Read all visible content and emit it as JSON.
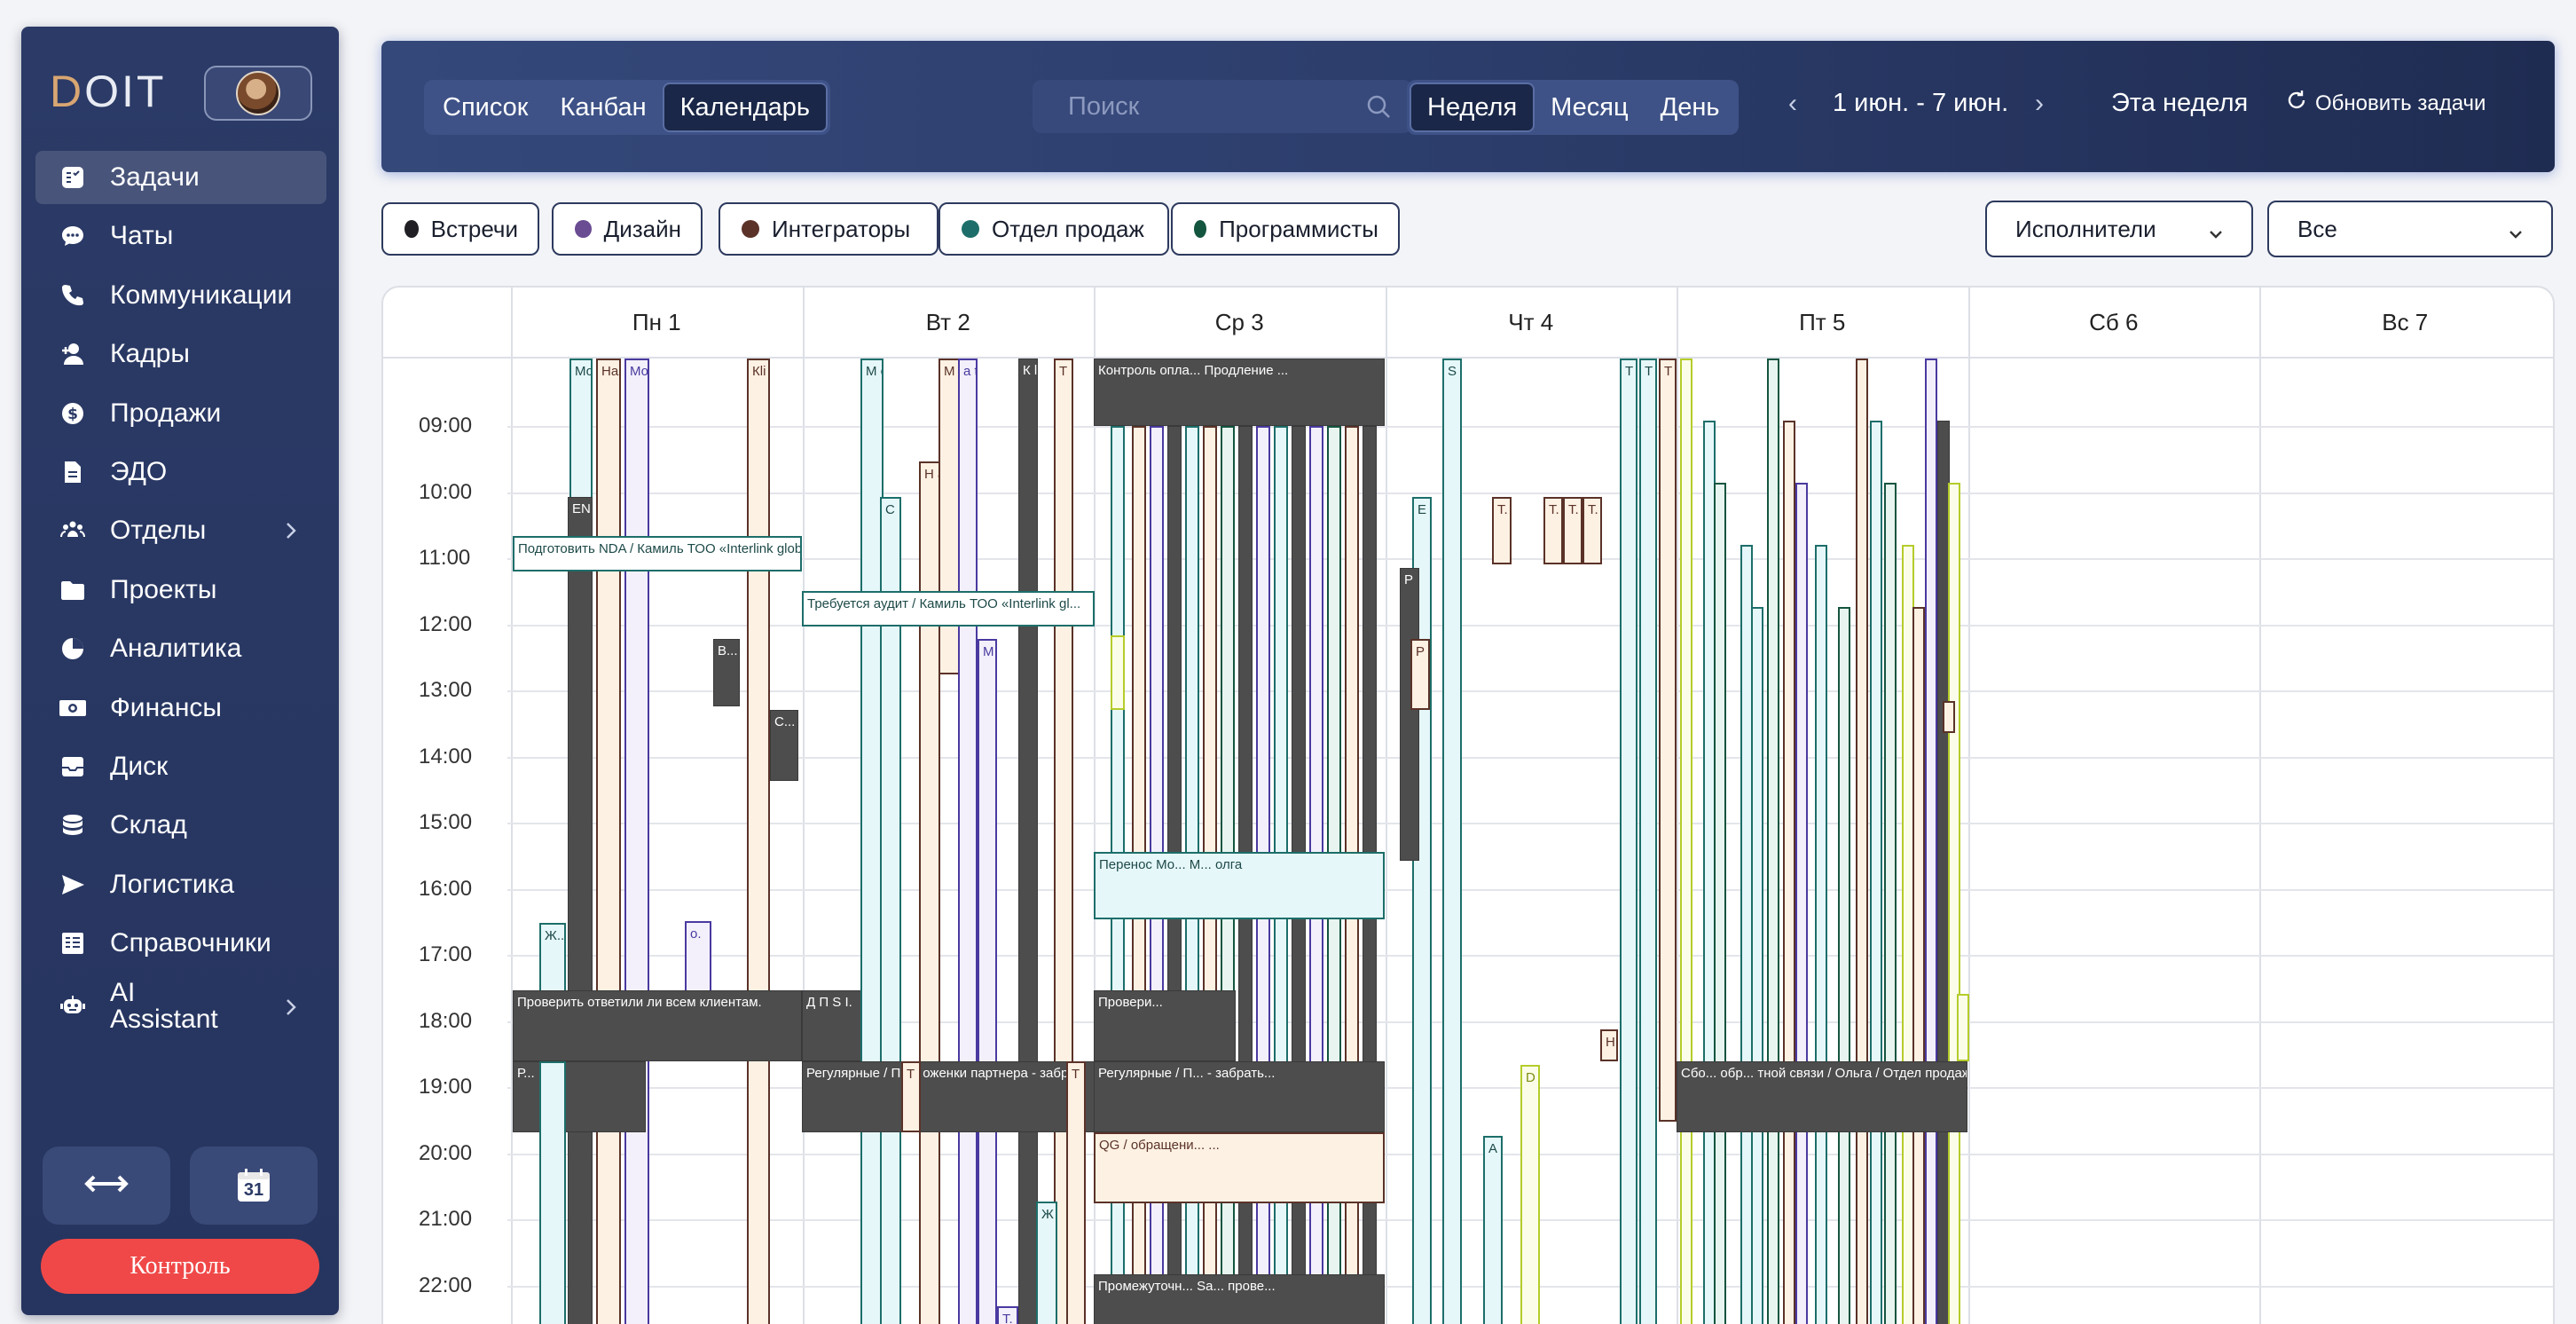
{
  "sidebar": {
    "logo": {
      "first": "D",
      "rest": "OIT"
    },
    "items": [
      {
        "label": "Задачи",
        "icon": "tasks-icon",
        "active": true
      },
      {
        "label": "Чаты",
        "icon": "chat-icon"
      },
      {
        "label": "Коммуникации",
        "icon": "phone-icon"
      },
      {
        "label": "Кадры",
        "icon": "add-user-icon"
      },
      {
        "label": "Продажи",
        "icon": "dollar-icon"
      },
      {
        "label": "ЭДО",
        "icon": "document-icon"
      },
      {
        "label": "Отделы",
        "icon": "departments-icon",
        "chevron": true
      },
      {
        "label": "Проекты",
        "icon": "folder-icon"
      },
      {
        "label": "Аналитика",
        "icon": "pie-chart-icon"
      },
      {
        "label": "Финансы",
        "icon": "finance-icon"
      },
      {
        "label": "Диск",
        "icon": "inbox-icon"
      },
      {
        "label": "Склад",
        "icon": "database-icon"
      },
      {
        "label": "Логистика",
        "icon": "send-icon"
      },
      {
        "label": "Справочники",
        "icon": "directory-icon"
      },
      {
        "label": "AI Assistant",
        "icon": "robot-icon",
        "chevron": true
      }
    ],
    "calendar_day": "31",
    "control_label": "Контроль"
  },
  "topbar": {
    "view_tabs": [
      "Список",
      "Канбан",
      "Календарь"
    ],
    "selected_view": "Календарь",
    "search_placeholder": "Поиск",
    "range_tabs": [
      "Неделя",
      "Месяц",
      "День"
    ],
    "selected_range": "Неделя",
    "prev": "‹",
    "range_text": "1 июн. - 7 июн.",
    "next": "›",
    "this_week": "Эта неделя",
    "refresh": "Обновить задачи"
  },
  "filters": {
    "chips": [
      {
        "label": "Встречи",
        "color": "#1f1f24"
      },
      {
        "label": "Дизайн",
        "color": "#6a4c93"
      },
      {
        "label": "Интеграторы",
        "color": "#5b3228"
      },
      {
        "label": "Отдел продаж",
        "color": "#1d6e6a"
      },
      {
        "label": "Программисты",
        "color": "#14553f"
      }
    ],
    "performers_label": "Исполнители",
    "all_label": "Все"
  },
  "calendar": {
    "days": [
      "Пн 1",
      "Вт 2",
      "Ср 3",
      "Чт 4",
      "Пт 5",
      "Сб 6",
      "Вс 7"
    ],
    "hours": [
      "09:00",
      "10:00",
      "11:00",
      "12:00",
      "13:00",
      "14:00",
      "15:00",
      "16:00",
      "17:00",
      "18:00",
      "19:00",
      "20:00",
      "21:00",
      "22:00"
    ],
    "colors": {
      "dark": "#4d4d4d",
      "teal_fill": "#e6f7fa",
      "teal_border": "#1d6e6a",
      "peach_fill": "#fdf1e3",
      "brown_border": "#5b3228",
      "purple_border": "#4a3aa0",
      "lime_border": "#b5cc2a",
      "green_border": "#14553f"
    },
    "events": {
      "nda": "Подготовить NDA / Камиль ТОО «Interlink glob...",
      "audit": "Требуется аудит / Камиль ТОО «Interlink gl...",
      "check_clients": "Проверить ответили ли всем клиентам.",
      "regular": "Регулярные / Пр... оженки партнера - забр...",
      "control_pay": "Контроль опла... Продление ...",
      "transfer": "Перенос Мо... М... олга",
      "check": "Провери...",
      "regular_wed": "Регулярные / П... - забрать...",
      "qg": "QG / обращени... ...",
      "interim": "Промежуточн... Sa... прове...",
      "feedback": "Сбо... обр... тной связи / Ольга / Отдел продаж",
      "en": "EN IT...",
      "p_dots": "Р...",
      "small_letters": [
        "Мо д...",
        "На с...",
        "Мо н...",
        "Кli m...",
        "В...",
        "С...",
        "Ж...",
        "о.",
        "Д",
        "П",
        "S I.",
        "С h.",
        "Н а.",
        "М о.",
        "а t.",
        "К l.",
        "Т",
        "Ж",
        "Т.",
        "Т.",
        "Т.",
        "Т.",
        "Е n.",
        "Р",
        "Р о.",
        "S",
        "Т О",
        "Т О",
        "Т О",
        "Н",
        "D о",
        "А"
      ]
    }
  }
}
